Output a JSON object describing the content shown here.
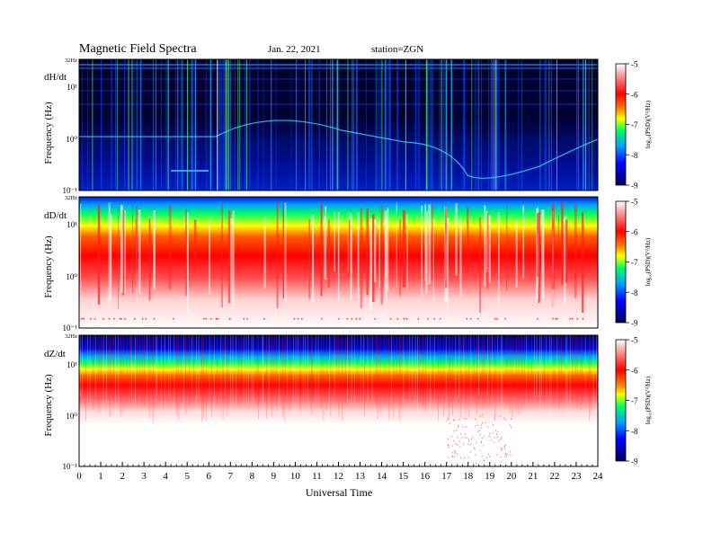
{
  "header": {
    "title": "Magnetic Field Spectra",
    "date": "Jan. 22, 2021",
    "station": "station=ZGN"
  },
  "chart_data": {
    "type": "heatmap",
    "xlabel": "Universal Time",
    "x_ticks": [
      "0",
      "1",
      "2",
      "3",
      "4",
      "5",
      "6",
      "7",
      "8",
      "9",
      "10",
      "11",
      "12",
      "13",
      "14",
      "15",
      "16",
      "17",
      "18",
      "19",
      "20",
      "21",
      "22",
      "23",
      "24"
    ],
    "xlim": [
      0,
      24
    ],
    "y_scale": "log",
    "ylim_hz": [
      0.1,
      32
    ],
    "colorbar": {
      "label": "log₁₀(PSD)(V²/Hz)",
      "ticks": [
        "-5",
        "-6",
        "-7",
        "-8",
        "-9"
      ],
      "range": [
        -9,
        -5
      ],
      "colors": [
        "#000060",
        "#0000ff",
        "#00a0ff",
        "#00ff60",
        "#ffff00",
        "#ff8000",
        "#ff0000",
        "#ff8080",
        "#ffffff"
      ]
    },
    "panels": [
      {
        "component": "dH/dt",
        "ylabel": "Frequency (Hz)",
        "y_ticks": [
          "32Hz",
          "10¹",
          "10⁰",
          "10⁻¹"
        ]
      },
      {
        "component": "dD/dt",
        "ylabel": "Frequency (Hz)",
        "y_ticks": [
          "32Hz",
          "10¹",
          "10⁰",
          "10⁻¹"
        ]
      },
      {
        "component": "dZ/dt",
        "ylabel": "Frequency (Hz)",
        "y_ticks": [
          "32Hz",
          "10¹",
          "10⁰",
          "10⁻¹"
        ]
      }
    ]
  }
}
